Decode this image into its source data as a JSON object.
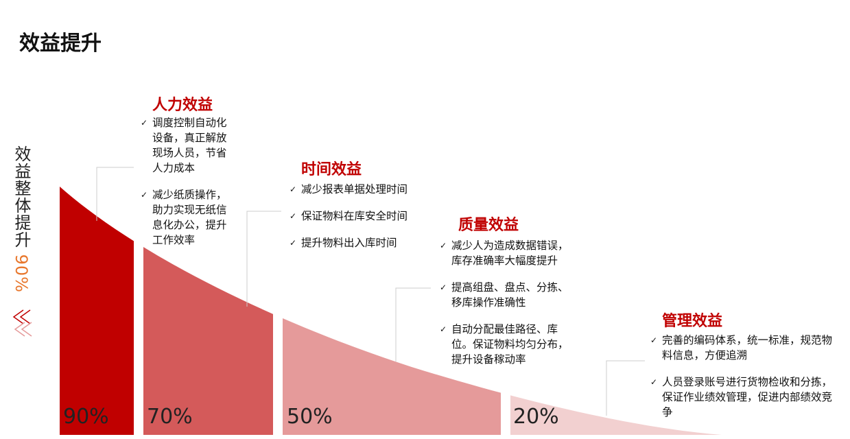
{
  "title": "效益提升",
  "side_label": {
    "text": "效益整体提升",
    "value": "90%"
  },
  "segments": [
    {
      "percent": "90%",
      "heading": "人力效益",
      "bullets": [
        "调度控制自动化设备，真正解放现场人员，节省人力成本",
        "减少纸质操作，助力实现无纸信息化办公，提升工作效率"
      ]
    },
    {
      "percent": "70%",
      "heading": "时间效益",
      "bullets": [
        "减少报表单据处理时间",
        "保证物料在库安全时间",
        "提升物料出入库时间"
      ]
    },
    {
      "percent": "50%",
      "heading": "质量效益",
      "bullets": [
        "减少人为造成数据错误，库存准确率大幅度提升",
        "提高组盘、盘点、分拣、移库操作准确性",
        "自动分配最佳路径、库位。保证物料均匀分布，提升设备稼动率"
      ]
    },
    {
      "percent": "20%",
      "heading": "管理效益",
      "bullets": [
        "完善的编码体系，统一标准，规范物料信息，方便追溯",
        "人员登录账号进行货物检收和分拣，保证作业绩效管理，促进内部绩效竞争"
      ]
    }
  ]
}
